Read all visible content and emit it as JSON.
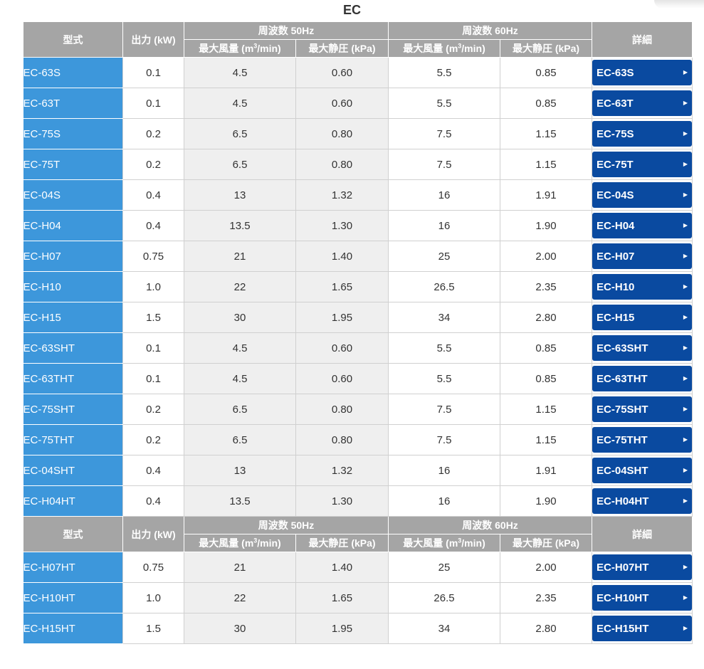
{
  "title": "EC",
  "header": {
    "model": "型式",
    "power": "出力 (kW)",
    "freq50": "周波数 50Hz",
    "freq60": "周波数 60Hz",
    "airflow_prefix": "最大風量 (m",
    "airflow_exp": "3",
    "airflow_suffix": "/min)",
    "pressure": "最大静圧 (kPa)",
    "detail": "詳細"
  },
  "colors": {
    "header_bg": "#a5a5a5",
    "model_bg": "#3d97db",
    "button_bg": "#0a4aa0"
  },
  "icons": {
    "button_arrow": "arrow-right-icon"
  },
  "rows_1": [
    {
      "model": "EC-63S",
      "power": "0.1",
      "air50": "4.5",
      "pres50": "0.60",
      "air60": "5.5",
      "pres60": "0.85",
      "detail": "EC-63S"
    },
    {
      "model": "EC-63T",
      "power": "0.1",
      "air50": "4.5",
      "pres50": "0.60",
      "air60": "5.5",
      "pres60": "0.85",
      "detail": "EC-63T"
    },
    {
      "model": "EC-75S",
      "power": "0.2",
      "air50": "6.5",
      "pres50": "0.80",
      "air60": "7.5",
      "pres60": "1.15",
      "detail": "EC-75S"
    },
    {
      "model": "EC-75T",
      "power": "0.2",
      "air50": "6.5",
      "pres50": "0.80",
      "air60": "7.5",
      "pres60": "1.15",
      "detail": "EC-75T"
    },
    {
      "model": "EC-04S",
      "power": "0.4",
      "air50": "13",
      "pres50": "1.32",
      "air60": "16",
      "pres60": "1.91",
      "detail": "EC-04S"
    },
    {
      "model": "EC-H04",
      "power": "0.4",
      "air50": "13.5",
      "pres50": "1.30",
      "air60": "16",
      "pres60": "1.90",
      "detail": "EC-H04"
    },
    {
      "model": "EC-H07",
      "power": "0.75",
      "air50": "21",
      "pres50": "1.40",
      "air60": "25",
      "pres60": "2.00",
      "detail": "EC-H07"
    },
    {
      "model": "EC-H10",
      "power": "1.0",
      "air50": "22",
      "pres50": "1.65",
      "air60": "26.5",
      "pres60": "2.35",
      "detail": "EC-H10"
    },
    {
      "model": "EC-H15",
      "power": "1.5",
      "air50": "30",
      "pres50": "1.95",
      "air60": "34",
      "pres60": "2.80",
      "detail": "EC-H15"
    },
    {
      "model": "EC-63SHT",
      "power": "0.1",
      "air50": "4.5",
      "pres50": "0.60",
      "air60": "5.5",
      "pres60": "0.85",
      "detail": "EC-63SHT"
    },
    {
      "model": "EC-63THT",
      "power": "0.1",
      "air50": "4.5",
      "pres50": "0.60",
      "air60": "5.5",
      "pres60": "0.85",
      "detail": "EC-63THT"
    },
    {
      "model": "EC-75SHT",
      "power": "0.2",
      "air50": "6.5",
      "pres50": "0.80",
      "air60": "7.5",
      "pres60": "1.15",
      "detail": "EC-75SHT"
    },
    {
      "model": "EC-75THT",
      "power": "0.2",
      "air50": "6.5",
      "pres50": "0.80",
      "air60": "7.5",
      "pres60": "1.15",
      "detail": "EC-75THT"
    },
    {
      "model": "EC-04SHT",
      "power": "0.4",
      "air50": "13",
      "pres50": "1.32",
      "air60": "16",
      "pres60": "1.91",
      "detail": "EC-04SHT"
    },
    {
      "model": "EC-H04HT",
      "power": "0.4",
      "air50": "13.5",
      "pres50": "1.30",
      "air60": "16",
      "pres60": "1.90",
      "detail": "EC-H04HT"
    }
  ],
  "rows_2": [
    {
      "model": "EC-H07HT",
      "power": "0.75",
      "air50": "21",
      "pres50": "1.40",
      "air60": "25",
      "pres60": "2.00",
      "detail": "EC-H07HT"
    },
    {
      "model": "EC-H10HT",
      "power": "1.0",
      "air50": "22",
      "pres50": "1.65",
      "air60": "26.5",
      "pres60": "2.35",
      "detail": "EC-H10HT"
    },
    {
      "model": "EC-H15HT",
      "power": "1.5",
      "air50": "30",
      "pres50": "1.95",
      "air60": "34",
      "pres60": "2.80",
      "detail": "EC-H15HT"
    }
  ]
}
